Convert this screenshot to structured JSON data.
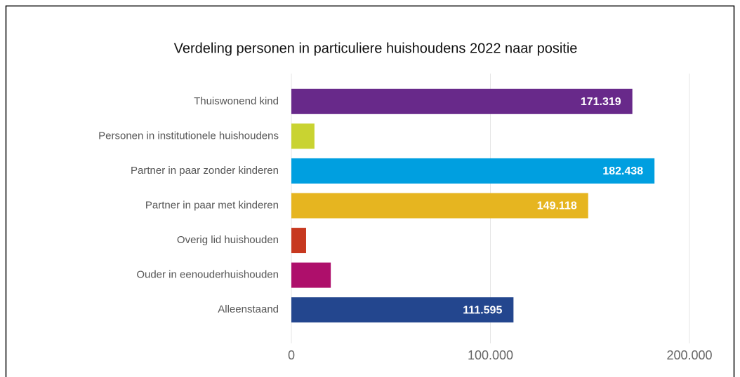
{
  "chart_data": {
    "type": "hbar",
    "title": "Verdeling personen in particuliere huishoudens 2022 naar positie",
    "categories": [
      "Thuiswonend kind",
      "Personen in institutionele huishoudens",
      "Partner in paar zonder kinderen",
      "Partner in paar met kinderen",
      "Overig lid huishouden",
      "Ouder in eenouderhuishouden",
      "Alleenstaand"
    ],
    "values": [
      171319,
      11600,
      182438,
      149118,
      7400,
      19800,
      111595
    ],
    "value_labels": [
      "171.319",
      null,
      "182.438",
      "149.118",
      null,
      null,
      "111.595"
    ],
    "colors": [
      "#68298a",
      "#c9d331",
      "#009fe0",
      "#e6b520",
      "#c7381f",
      "#ae0f6b",
      "#23468e"
    ],
    "xlim": [
      0,
      200000
    ],
    "xticks": [
      0,
      {
        "value": 100000,
        "label": "100.000"
      },
      {
        "value": 200000,
        "label": "200.000"
      }
    ],
    "grid": true
  }
}
